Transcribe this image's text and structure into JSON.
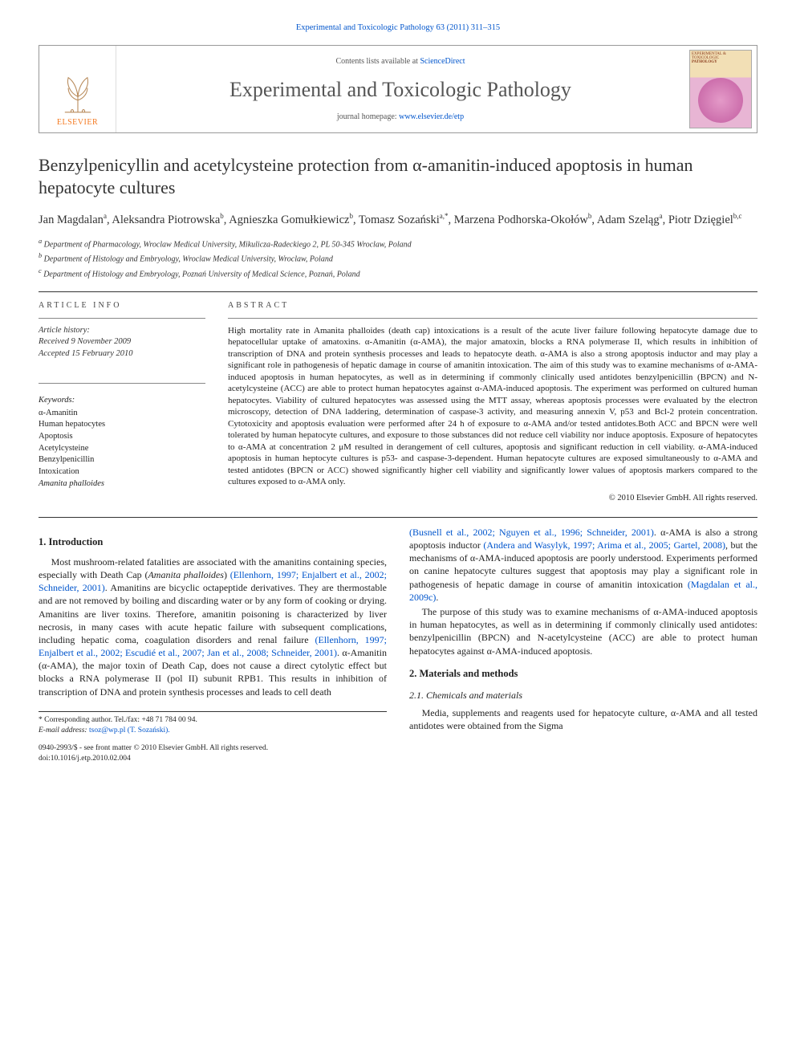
{
  "header": {
    "citation": "Experimental and Toxicologic Pathology 63 (2011) 311–315",
    "contents_prefix": "Contents lists available at ",
    "contents_link": "ScienceDirect",
    "journal_name": "Experimental and Toxicologic Pathology",
    "homepage_prefix": "journal homepage: ",
    "homepage_link": "www.elsevier.de/etp",
    "publisher_label": "ELSEVIER",
    "cover_caption_top": "EXPERIMENTAL & TOXICOLOGIC",
    "cover_caption_bottom": "PATHOLOGY"
  },
  "article": {
    "title": "Benzylpenicyllin and acetylcysteine protection from α-amanitin-induced apoptosis in human hepatocyte cultures",
    "authors_html": "Jan Magdalan<sup>a</sup>, Aleksandra Piotrowska<sup>b</sup>, Agnieszka Gomułkiewicz<sup>b</sup>, Tomasz Sozański<sup>a,*</sup>, Marzena Podhorska-Okołów<sup>b</sup>, Adam Szeląg<sup>a</sup>, Piotr Dzięgiel<sup>b,c</sup>",
    "affiliations": [
      "a Department of Pharmacology, Wroclaw Medical University, Mikulicza-Radeckiego 2, PL 50-345 Wroclaw, Poland",
      "b Department of Histology and Embryology, Wroclaw Medical University, Wroclaw, Poland",
      "c Department of Histology and Embryology, Poznań University of Medical Science, Poznań, Poland"
    ]
  },
  "info": {
    "label": "ARTICLE INFO",
    "history_label": "Article history:",
    "received": "Received 9 November 2009",
    "accepted": "Accepted 15 February 2010",
    "keywords_label": "Keywords:",
    "keywords": [
      "α-Amanitin",
      "Human hepatocytes",
      "Apoptosis",
      "Acetylcysteine",
      "Benzylpenicillin",
      "Intoxication",
      "Amanita phalloides"
    ]
  },
  "abstract": {
    "label": "ABSTRACT",
    "text": "High mortality rate in Amanita phalloides (death cap) intoxications is a result of the acute liver failure following hepatocyte damage due to hepatocellular uptake of amatoxins. α-Amanitin (α-AMA), the major amatoxin, blocks a RNA polymerase II, which results in inhibition of transcription of DNA and protein synthesis processes and leads to hepatocyte death. α-AMA is also a strong apoptosis inductor and may play a significant role in pathogenesis of hepatic damage in course of amanitin intoxication. The aim of this study was to examine mechanisms of α-AMA-induced apoptosis in human hepatocytes, as well as in determining if commonly clinically used antidotes benzylpenicillin (BPCN) and N-acetylcysteine (ACC) are able to protect human hepatocytes against α-AMA-induced apoptosis. The experiment was performed on cultured human hepatocytes. Viability of cultured hepatocytes was assessed using the MTT assay, whereas apoptosis processes were evaluated by the electron microscopy, detection of DNA laddering, determination of caspase-3 activity, and measuring annexin V, p53 and Bcl-2 protein concentration. Cytotoxicity and apoptosis evaluation were performed after 24 h of exposure to α-AMA and/or tested antidotes.Both ACC and BPCN were well tolerated by human hepatocyte cultures, and exposure to those substances did not reduce cell viability nor induce apoptosis. Exposure of hepatocytes to α-AMA at concentration 2 μM resulted in derangement of cell cultures, apoptosis and significant reduction in cell viability. α-AMA-induced apoptosis in human heptocyte cultures is p53- and caspase-3-dependent. Human hepatocyte cultures are exposed simultaneously to α-AMA and tested antidotes (BPCN or ACC) showed significantly higher cell viability and significantly lower values of apoptosis markers compared to the cultures exposed to α-AMA only.",
    "copyright": "© 2010 Elsevier GmbH. All rights reserved."
  },
  "body": {
    "sec1_heading": "1.  Introduction",
    "sec1_p1": "Most mushroom-related fatalities are associated with the amanitins containing species, especially with Death Cap (Amanita phalloides) (Ellenhorn, 1997; Enjalbert et al., 2002; Schneider, 2001). Amanitins are bicyclic octapeptide derivatives. They are thermostable and are not removed by boiling and discarding water or by any form of cooking or drying. Amanitins are liver toxins. Therefore, amanitin poisoning is characterized by liver necrosis, in many cases with acute hepatic failure with subsequent complications, including hepatic coma, coagulation disorders and renal failure (Ellenhorn, 1997; Enjalbert et al., 2002; Escudié et al., 2007; Jan et al., 2008; Schneider, 2001). α-Amanitin (α-AMA), the major toxin of Death Cap, does not cause a direct cytolytic effect but blocks a RNA polymerase II (pol II) subunit RPB1. This results in inhibition of transcription of DNA and protein synthesis processes and leads to cell death",
    "sec1_p2": "(Busnell et al., 2002; Nguyen et al., 1996; Schneider, 2001). α-AMA is also a strong apoptosis inductor (Andera and Wasylyk, 1997; Arima et al., 2005; Gartel, 2008), but the mechanisms of α-AMA-induced apoptosis are poorly understood. Experiments performed on canine hepatocyte cultures suggest that apoptosis may play a significant role in pathogenesis of hepatic damage in course of amanitin intoxication (Magdalan et al., 2009c).",
    "sec1_p3": "The purpose of this study was to examine mechanisms of α-AMA-induced apoptosis in human hepatocytes, as well as in determining if commonly clinically used antidotes: benzylpenicillin (BPCN) and N-acetylcysteine (ACC) are able to protect human hepatocytes against α-AMA-induced apoptosis.",
    "sec2_heading": "2.  Materials and methods",
    "sec2_1_heading": "2.1.  Chemicals and materials",
    "sec2_1_p1": "Media, supplements and reagents used for hepatocyte culture, α-AMA and all tested antidotes were obtained from the Sigma"
  },
  "footer": {
    "corresponding": "* Corresponding author. Tel./fax: +48 71 784 00 94.",
    "email_label": "E-mail address:",
    "email": "tsoz@wp.pl (T. Sozański).",
    "issn_line": "0940-2993/$ - see front matter © 2010 Elsevier GmbH. All rights reserved.",
    "doi_line": "doi:10.1016/j.etp.2010.02.004"
  },
  "colors": {
    "link": "#0055cc",
    "elsevier_orange": "#f47920",
    "text": "#222222"
  }
}
